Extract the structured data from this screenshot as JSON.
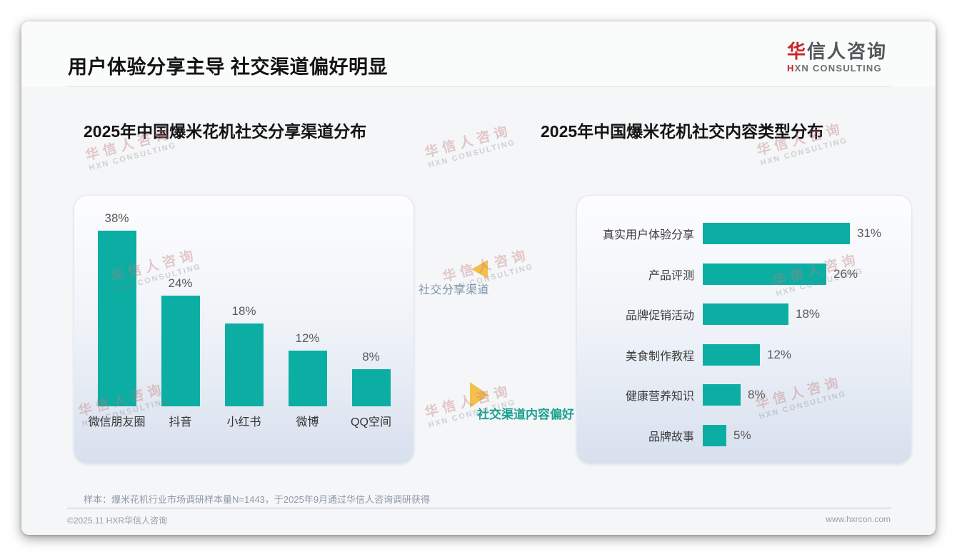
{
  "header": {
    "title": "用户体验分享主导 社交渠道偏好明显",
    "logo_cn_first": "华",
    "logo_cn_rest": "信人咨询",
    "logo_en_first": "H",
    "logo_en_rest": "XN CONSULTING"
  },
  "chart_data": [
    {
      "type": "bar",
      "orientation": "vertical",
      "title": "2025年中国爆米花机社交分享渠道分布",
      "categories": [
        "微信朋友圈",
        "抖音",
        "小红书",
        "微博",
        "QQ空间"
      ],
      "values": [
        38,
        24,
        18,
        12,
        8
      ],
      "value_labels": [
        "38%",
        "24%",
        "18%",
        "12%",
        "8%"
      ],
      "unit": "%",
      "ylim": [
        0,
        40
      ],
      "grid": false,
      "legend": "none",
      "bar_color": "#0caea3"
    },
    {
      "type": "bar",
      "orientation": "horizontal",
      "title": "2025年中国爆米花机社交内容类型分布",
      "categories": [
        "真实用户体验分享",
        "产品评测",
        "品牌促销活动",
        "美食制作教程",
        "健康营养知识",
        "品牌故事"
      ],
      "values": [
        31,
        26,
        18,
        12,
        8,
        5
      ],
      "value_labels": [
        "31%",
        "26%",
        "18%",
        "12%",
        "8%",
        "5%"
      ],
      "unit": "%",
      "xlim": [
        0,
        33
      ],
      "grid": false,
      "legend": "none",
      "bar_color": "#0caea3"
    }
  ],
  "middle": {
    "top_label": "社交分享渠道",
    "bottom_label": "社交渠道内容偏好"
  },
  "footer": {
    "sample_note": "样本：爆米花机行业市场调研样本量N=1443，于2025年9月通过华信人咨询调研获得",
    "copyright": "©2025.11 HXR华信人咨询",
    "website": "www.hxrcon.com"
  },
  "watermark": {
    "line1": "华信人咨询",
    "line2": "HXN CONSULTING"
  },
  "colors": {
    "bar": "#0caea3",
    "brand_red": "#c9252c",
    "triangle_yellow": "#f5c04a",
    "mid_label_top": "#7d95b3",
    "mid_label_bottom": "#1ba192"
  }
}
